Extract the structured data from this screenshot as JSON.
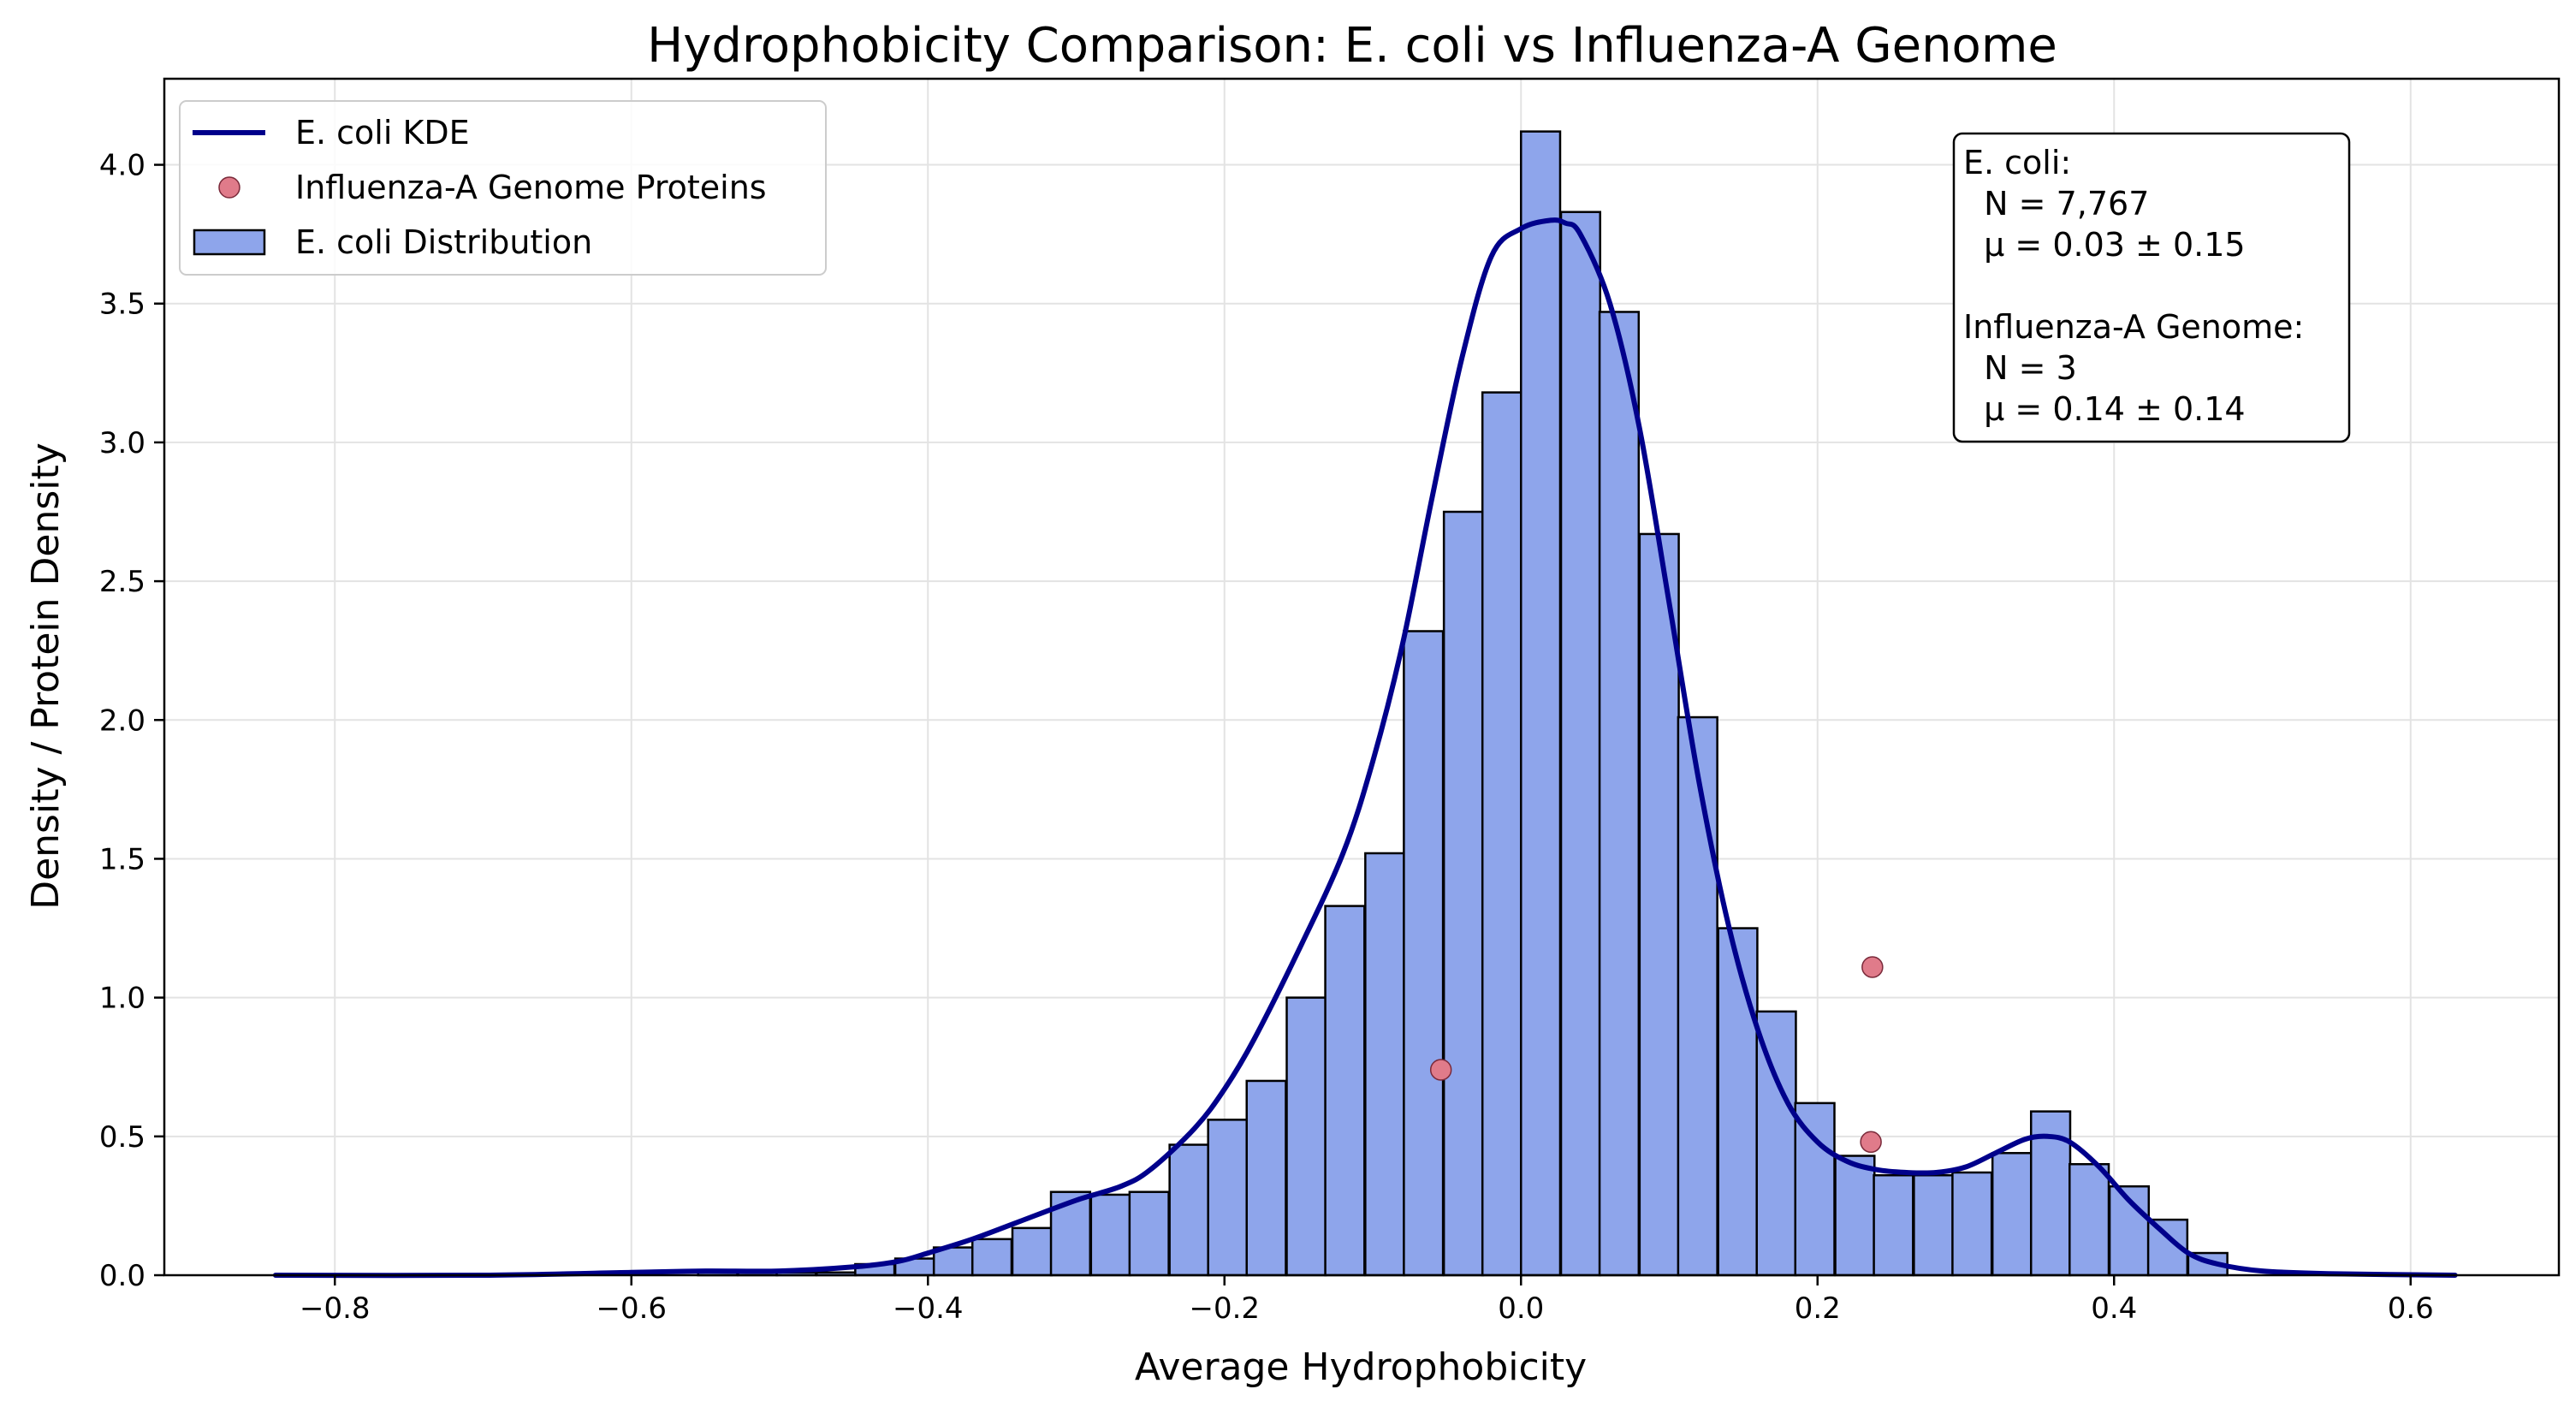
{
  "chart_data": {
    "type": "histogram",
    "title": "Hydrophobicity Comparison: E. coli vs Influenza-A Genome",
    "xlabel": "Average Hydrophobicity",
    "ylabel": "Density / Protein Density",
    "xlim": [
      -0.915,
      0.7
    ],
    "ylim": [
      0,
      4.31
    ],
    "xticks": [
      -0.8,
      -0.6,
      -0.4,
      -0.2,
      0.0,
      0.2,
      0.4,
      0.6
    ],
    "xtick_labels": [
      "−0.8",
      "−0.6",
      "−0.4",
      "−0.2",
      "0.0",
      "0.2",
      "0.4",
      "0.6"
    ],
    "yticks": [
      0.0,
      0.5,
      1.0,
      1.5,
      2.0,
      2.5,
      3.0,
      3.5,
      4.0
    ],
    "ytick_labels": [
      "0.0",
      "0.5",
      "1.0",
      "1.5",
      "2.0",
      "2.5",
      "3.0",
      "3.5",
      "4.0"
    ],
    "grid": true,
    "legend_position": "upper-left",
    "colors": {
      "bars": "#8ea5eb",
      "bar_edge": "#000000",
      "kde": "#00008b",
      "points": "#e07b8a",
      "point_edge": "#7a2a3a",
      "grid": "#e3e3e3"
    },
    "histogram": {
      "name": "E. coli Distribution",
      "bin_width": 0.0264,
      "bins": [
        {
          "left": -0.555,
          "density": 0.01
        },
        {
          "left": -0.528,
          "density": 0.01
        },
        {
          "left": -0.502,
          "density": 0.01
        },
        {
          "left": -0.475,
          "density": 0.01
        },
        {
          "left": -0.449,
          "density": 0.04
        },
        {
          "left": -0.422,
          "density": 0.06
        },
        {
          "left": -0.396,
          "density": 0.1
        },
        {
          "left": -0.37,
          "density": 0.13
        },
        {
          "left": -0.343,
          "density": 0.17
        },
        {
          "left": -0.317,
          "density": 0.3
        },
        {
          "left": -0.29,
          "density": 0.29
        },
        {
          "left": -0.264,
          "density": 0.3
        },
        {
          "left": -0.237,
          "density": 0.47
        },
        {
          "left": -0.211,
          "density": 0.56
        },
        {
          "left": -0.185,
          "density": 0.7
        },
        {
          "left": -0.158,
          "density": 1.0
        },
        {
          "left": -0.132,
          "density": 1.33
        },
        {
          "left": -0.105,
          "density": 1.52
        },
        {
          "left": -0.079,
          "density": 2.32
        },
        {
          "left": -0.052,
          "density": 2.75
        },
        {
          "left": -0.026,
          "density": 3.18
        },
        {
          "left": 0.0,
          "density": 4.12
        },
        {
          "left": 0.027,
          "density": 3.83
        },
        {
          "left": 0.053,
          "density": 3.47
        },
        {
          "left": 0.08,
          "density": 2.67
        },
        {
          "left": 0.106,
          "density": 2.01
        },
        {
          "left": 0.133,
          "density": 1.25
        },
        {
          "left": 0.159,
          "density": 0.95
        },
        {
          "left": 0.185,
          "density": 0.62
        },
        {
          "left": 0.212,
          "density": 0.43
        },
        {
          "left": 0.238,
          "density": 0.36
        },
        {
          "left": 0.265,
          "density": 0.36
        },
        {
          "left": 0.291,
          "density": 0.37
        },
        {
          "left": 0.318,
          "density": 0.44
        },
        {
          "left": 0.344,
          "density": 0.59
        },
        {
          "left": 0.37,
          "density": 0.4
        },
        {
          "left": 0.397,
          "density": 0.32
        },
        {
          "left": 0.423,
          "density": 0.2
        },
        {
          "left": 0.45,
          "density": 0.08
        }
      ]
    },
    "kde": {
      "name": "E. coli KDE",
      "x": [
        -0.84,
        -0.7,
        -0.6,
        -0.55,
        -0.5,
        -0.45,
        -0.42,
        -0.4,
        -0.37,
        -0.34,
        -0.3,
        -0.27,
        -0.25,
        -0.22,
        -0.2,
        -0.18,
        -0.15,
        -0.12,
        -0.1,
        -0.08,
        -0.06,
        -0.04,
        -0.02,
        0.0,
        0.02,
        0.03,
        0.04,
        0.06,
        0.08,
        0.1,
        0.12,
        0.14,
        0.16,
        0.18,
        0.2,
        0.22,
        0.24,
        0.26,
        0.28,
        0.3,
        0.32,
        0.34,
        0.355,
        0.37,
        0.39,
        0.41,
        0.43,
        0.45,
        0.47,
        0.5,
        0.55,
        0.63
      ],
      "y": [
        0.0,
        0.0,
        0.01,
        0.015,
        0.015,
        0.03,
        0.05,
        0.08,
        0.13,
        0.19,
        0.27,
        0.32,
        0.38,
        0.53,
        0.67,
        0.85,
        1.17,
        1.52,
        1.85,
        2.27,
        2.8,
        3.3,
        3.67,
        3.77,
        3.8,
        3.79,
        3.75,
        3.5,
        3.05,
        2.42,
        1.78,
        1.26,
        0.88,
        0.62,
        0.48,
        0.41,
        0.38,
        0.37,
        0.37,
        0.39,
        0.44,
        0.49,
        0.5,
        0.48,
        0.39,
        0.27,
        0.17,
        0.08,
        0.04,
        0.015,
        0.005,
        0.0
      ]
    },
    "points": {
      "name": "Influenza-A Genome Proteins",
      "x": [
        -0.054,
        0.237,
        0.236
      ],
      "y": [
        0.74,
        1.11,
        0.48
      ]
    },
    "stats_box": {
      "lines": [
        "E. coli:",
        "  N = 7,767",
        "  μ = 0.03 ± 0.15",
        "",
        "Influenza-A Genome:",
        "  N = 3",
        "  μ = 0.14 ± 0.14"
      ],
      "position": "upper-right"
    },
    "legend": [
      {
        "label": "E. coli KDE",
        "kind": "line"
      },
      {
        "label": "Influenza-A Genome Proteins",
        "kind": "marker"
      },
      {
        "label": "E. coli Distribution",
        "kind": "patch"
      }
    ]
  }
}
